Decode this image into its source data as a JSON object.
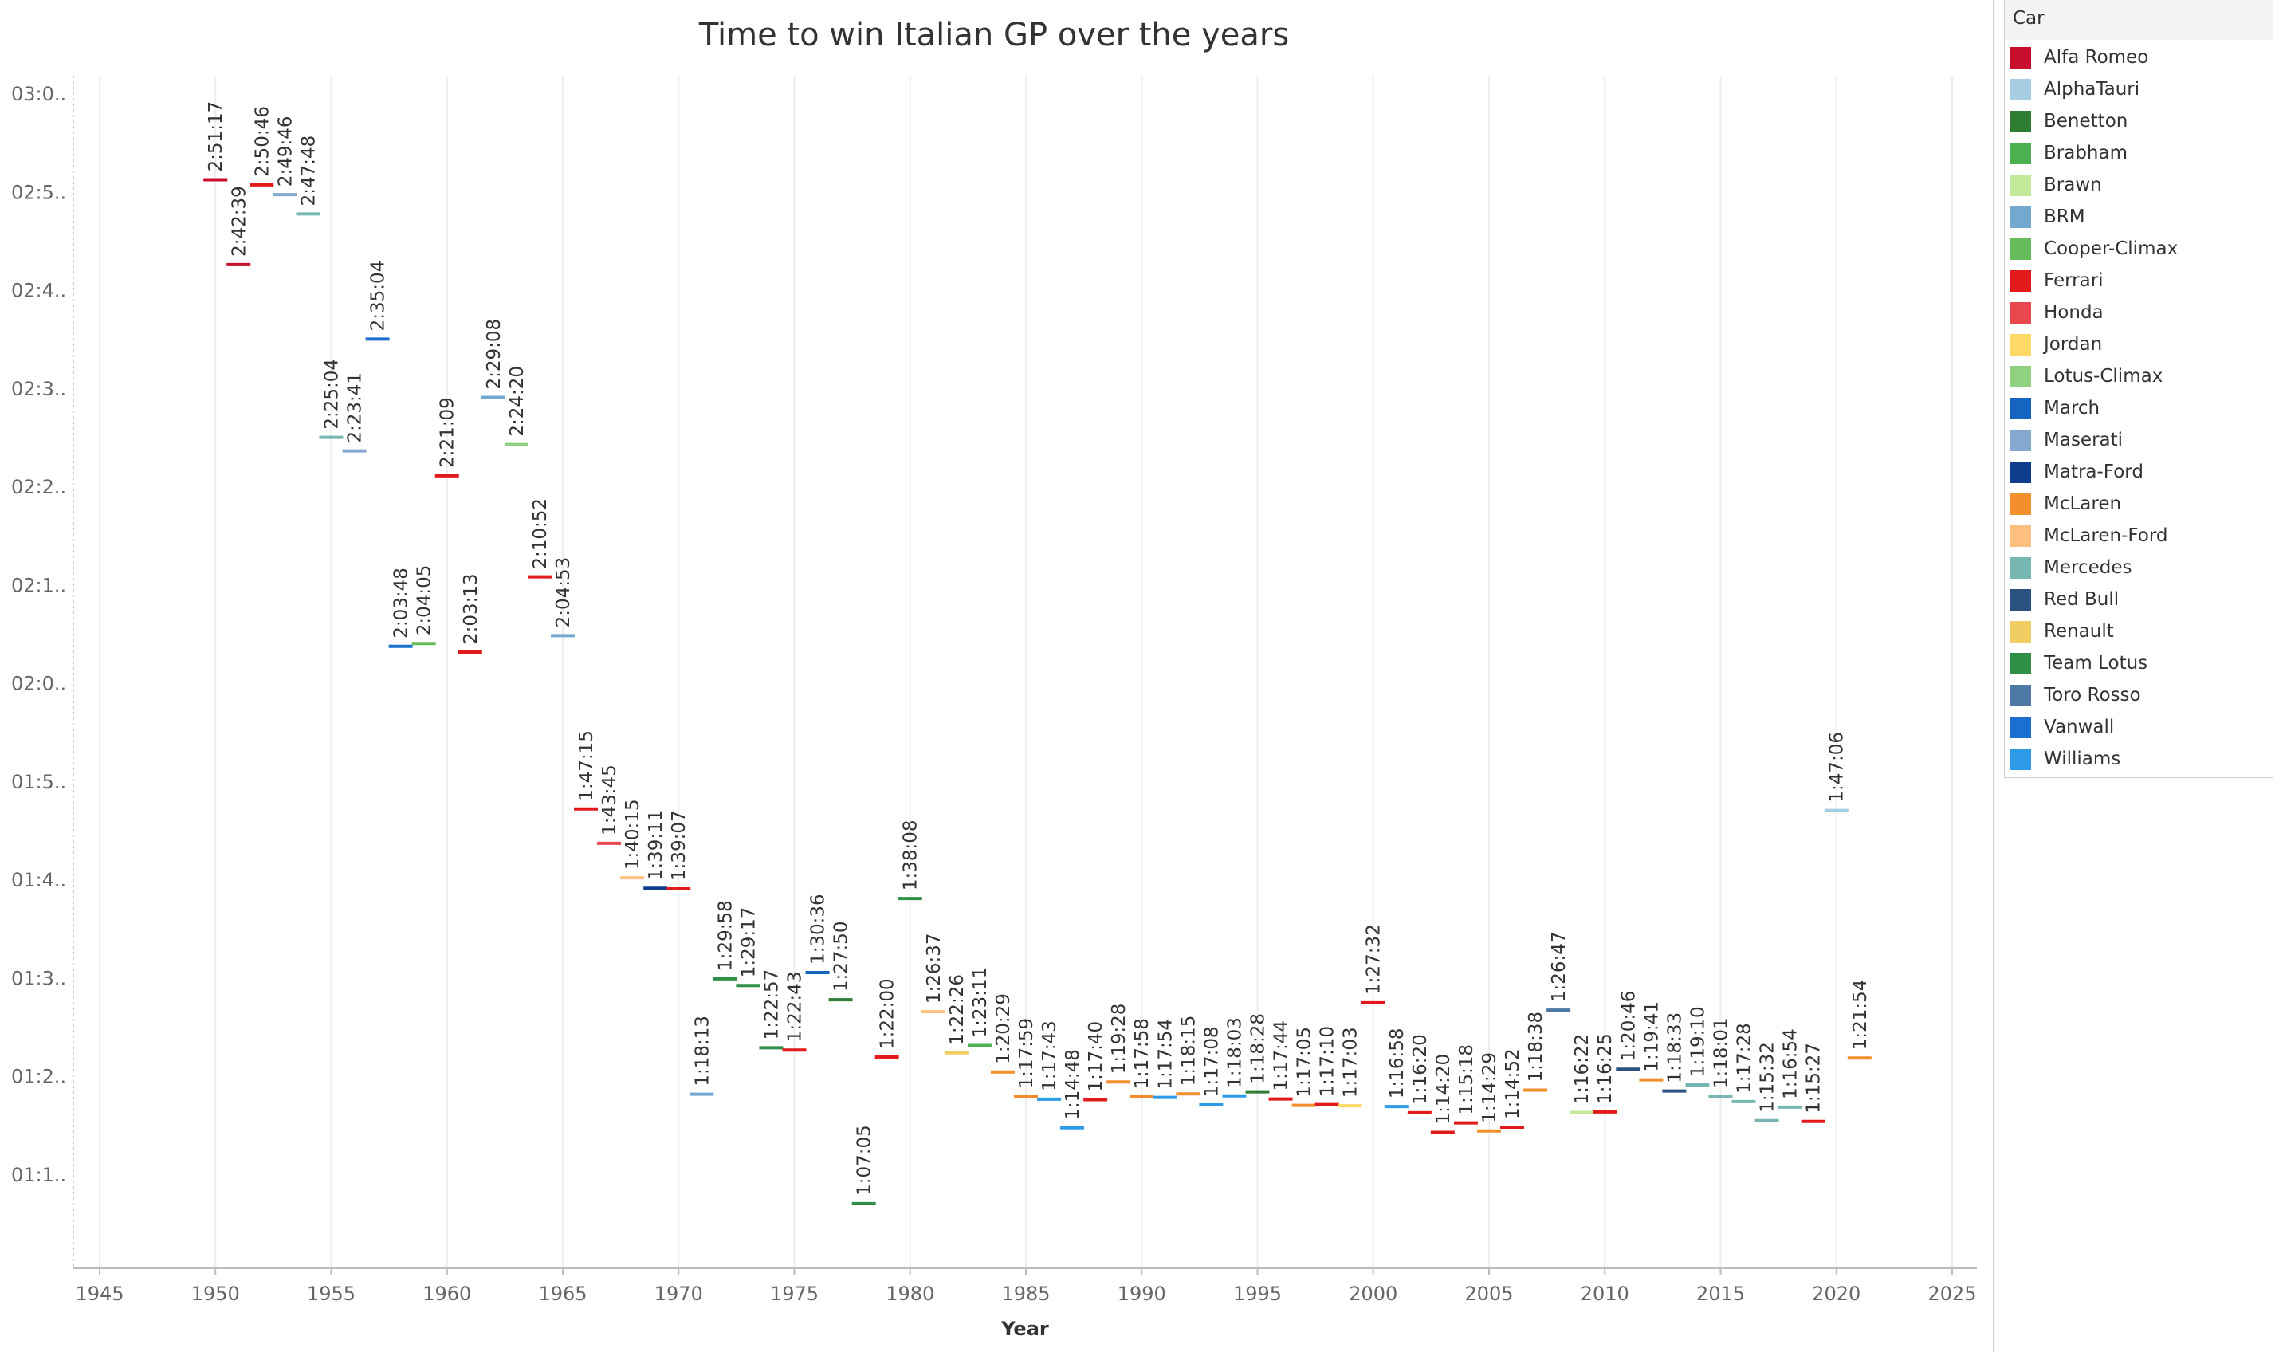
{
  "chart_data": {
    "type": "scatter",
    "title": "Time to win Italian GP over the years",
    "xlabel": "Year",
    "ylabel": "",
    "xlim": [
      1942,
      2027
    ],
    "xticks": [
      "1945",
      "1950",
      "1955",
      "1960",
      "1965",
      "1970",
      "1975",
      "1980",
      "1985",
      "1990",
      "1995",
      "2000",
      "2005",
      "2010",
      "2015",
      "2020",
      "2025"
    ],
    "yticks": [
      "03:0..",
      "02:5..",
      "02:4..",
      "02:3..",
      "02:2..",
      "02:1..",
      "02:0..",
      "01:5..",
      "01:4..",
      "01:3..",
      "01:2..",
      "01:1.."
    ],
    "gridlines_x": true,
    "legend_title": "Car",
    "legend_position": "right",
    "series": [
      {
        "name": "Alfa Romeo",
        "color": "#c8102e"
      },
      {
        "name": "AlphaTauri",
        "color": "#a6cee3"
      },
      {
        "name": "Benetton",
        "color": "#2e7d32"
      },
      {
        "name": "Brabham",
        "color": "#4caf50"
      },
      {
        "name": "Brawn",
        "color": "#c5e99b"
      },
      {
        "name": "BRM",
        "color": "#74a9cf"
      },
      {
        "name": "Cooper-Climax",
        "color": "#66bb5a"
      },
      {
        "name": "Ferrari",
        "color": "#e31a1c"
      },
      {
        "name": "Honda",
        "color": "#e8474e"
      },
      {
        "name": "Jordan",
        "color": "#ffd966"
      },
      {
        "name": "Lotus-Climax",
        "color": "#8fd17f"
      },
      {
        "name": "March",
        "color": "#1565c0"
      },
      {
        "name": "Maserati",
        "color": "#86a8cf"
      },
      {
        "name": "Matra-Ford",
        "color": "#0d3d8c"
      },
      {
        "name": "McLaren",
        "color": "#f28e2b"
      },
      {
        "name": "McLaren-Ford",
        "color": "#fdc07e"
      },
      {
        "name": "Mercedes",
        "color": "#76b7b2"
      },
      {
        "name": "Red Bull",
        "color": "#2c5282"
      },
      {
        "name": "Renault",
        "color": "#f1ce63"
      },
      {
        "name": "Team Lotus",
        "color": "#2f8f46"
      },
      {
        "name": "Toro Rosso",
        "color": "#4e79a7"
      },
      {
        "name": "Vanwall",
        "color": "#1a6fcf"
      },
      {
        "name": "Williams",
        "color": "#2d9be8"
      }
    ],
    "points": [
      {
        "year": 1950,
        "time": "2:51:17",
        "car": "Alfa Romeo"
      },
      {
        "year": 1951,
        "time": "2:42:39",
        "car": "Alfa Romeo"
      },
      {
        "year": 1952,
        "time": "2:50:46",
        "car": "Ferrari"
      },
      {
        "year": 1953,
        "time": "2:49:46",
        "car": "Maserati"
      },
      {
        "year": 1954,
        "time": "2:47:48",
        "car": "Mercedes"
      },
      {
        "year": 1955,
        "time": "2:25:04",
        "car": "Mercedes"
      },
      {
        "year": 1956,
        "time": "2:23:41",
        "car": "Maserati"
      },
      {
        "year": 1957,
        "time": "2:35:04",
        "car": "Vanwall"
      },
      {
        "year": 1958,
        "time": "2:03:48",
        "car": "Vanwall"
      },
      {
        "year": 1959,
        "time": "2:04:05",
        "car": "Cooper-Climax"
      },
      {
        "year": 1960,
        "time": "2:21:09",
        "car": "Ferrari"
      },
      {
        "year": 1961,
        "time": "2:03:13",
        "car": "Ferrari"
      },
      {
        "year": 1962,
        "time": "2:29:08",
        "car": "BRM"
      },
      {
        "year": 1963,
        "time": "2:24:20",
        "car": "Lotus-Climax"
      },
      {
        "year": 1964,
        "time": "2:10:52",
        "car": "Ferrari"
      },
      {
        "year": 1965,
        "time": "2:04:53",
        "car": "BRM"
      },
      {
        "year": 1966,
        "time": "1:47:15",
        "car": "Ferrari"
      },
      {
        "year": 1967,
        "time": "1:43:45",
        "car": "Honda"
      },
      {
        "year": 1968,
        "time": "1:40:15",
        "car": "McLaren-Ford"
      },
      {
        "year": 1969,
        "time": "1:39:11",
        "car": "Matra-Ford"
      },
      {
        "year": 1970,
        "time": "1:39:07",
        "car": "Ferrari"
      },
      {
        "year": 1971,
        "time": "1:18:13",
        "car": "BRM"
      },
      {
        "year": 1972,
        "time": "1:29:58",
        "car": "Team Lotus"
      },
      {
        "year": 1973,
        "time": "1:29:17",
        "car": "Team Lotus"
      },
      {
        "year": 1974,
        "time": "1:22:57",
        "car": "Team Lotus"
      },
      {
        "year": 1975,
        "time": "1:22:43",
        "car": "Ferrari"
      },
      {
        "year": 1976,
        "time": "1:30:36",
        "car": "March"
      },
      {
        "year": 1977,
        "time": "1:27:50",
        "car": "Benetton"
      },
      {
        "year": 1978,
        "time": "1:07:05",
        "car": "Team Lotus"
      },
      {
        "year": 1979,
        "time": "1:22:00",
        "car": "Ferrari"
      },
      {
        "year": 1980,
        "time": "1:38:08",
        "car": "Team Lotus"
      },
      {
        "year": 1981,
        "time": "1:26:37",
        "car": "McLaren-Ford"
      },
      {
        "year": 1982,
        "time": "1:22:26",
        "car": "Renault"
      },
      {
        "year": 1983,
        "time": "1:23:11",
        "car": "Brabham"
      },
      {
        "year": 1984,
        "time": "1:20:29",
        "car": "McLaren"
      },
      {
        "year": 1985,
        "time": "1:17:59",
        "car": "McLaren"
      },
      {
        "year": 1986,
        "time": "1:17:43",
        "car": "Williams"
      },
      {
        "year": 1987,
        "time": "1:14:48",
        "car": "Williams"
      },
      {
        "year": 1988,
        "time": "1:17:40",
        "car": "Ferrari"
      },
      {
        "year": 1989,
        "time": "1:19:28",
        "car": "McLaren"
      },
      {
        "year": 1990,
        "time": "1:17:58",
        "car": "McLaren"
      },
      {
        "year": 1991,
        "time": "1:17:54",
        "car": "Williams"
      },
      {
        "year": 1992,
        "time": "1:18:15",
        "car": "McLaren"
      },
      {
        "year": 1993,
        "time": "1:17:08",
        "car": "Williams"
      },
      {
        "year": 1994,
        "time": "1:18:03",
        "car": "Williams"
      },
      {
        "year": 1995,
        "time": "1:18:28",
        "car": "Benetton"
      },
      {
        "year": 1996,
        "time": "1:17:44",
        "car": "Ferrari"
      },
      {
        "year": 1997,
        "time": "1:17:05",
        "car": "McLaren"
      },
      {
        "year": 1998,
        "time": "1:17:10",
        "car": "Ferrari"
      },
      {
        "year": 1999,
        "time": "1:17:03",
        "car": "Jordan"
      },
      {
        "year": 2000,
        "time": "1:27:32",
        "car": "Ferrari"
      },
      {
        "year": 2001,
        "time": "1:16:58",
        "car": "Williams"
      },
      {
        "year": 2002,
        "time": "1:16:20",
        "car": "Ferrari"
      },
      {
        "year": 2003,
        "time": "1:14:20",
        "car": "Ferrari"
      },
      {
        "year": 2004,
        "time": "1:15:18",
        "car": "Ferrari"
      },
      {
        "year": 2005,
        "time": "1:14:29",
        "car": "McLaren"
      },
      {
        "year": 2006,
        "time": "1:14:52",
        "car": "Ferrari"
      },
      {
        "year": 2007,
        "time": "1:18:38",
        "car": "McLaren"
      },
      {
        "year": 2008,
        "time": "1:26:47",
        "car": "Toro Rosso"
      },
      {
        "year": 2009,
        "time": "1:16:22",
        "car": "Brawn"
      },
      {
        "year": 2010,
        "time": "1:16:25",
        "car": "Ferrari"
      },
      {
        "year": 2011,
        "time": "1:20:46",
        "car": "Red Bull"
      },
      {
        "year": 2012,
        "time": "1:19:41",
        "car": "McLaren"
      },
      {
        "year": 2013,
        "time": "1:18:33",
        "car": "Red Bull"
      },
      {
        "year": 2014,
        "time": "1:19:10",
        "car": "Mercedes"
      },
      {
        "year": 2015,
        "time": "1:18:01",
        "car": "Mercedes"
      },
      {
        "year": 2016,
        "time": "1:17:28",
        "car": "Mercedes"
      },
      {
        "year": 2017,
        "time": "1:15:32",
        "car": "Mercedes"
      },
      {
        "year": 2018,
        "time": "1:16:54",
        "car": "Mercedes"
      },
      {
        "year": 2019,
        "time": "1:15:27",
        "car": "Ferrari"
      },
      {
        "year": 2020,
        "time": "1:47:06",
        "car": "AlphaTauri"
      },
      {
        "year": 2021,
        "time": "1:21:54",
        "car": "McLaren"
      }
    ]
  }
}
